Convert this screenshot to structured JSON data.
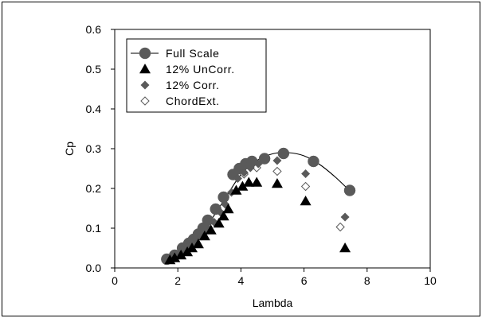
{
  "chart_data": {
    "type": "scatter",
    "xlabel": "Lambda",
    "ylabel": "Cp",
    "xlim": [
      0,
      10
    ],
    "ylim": [
      0,
      0.6
    ],
    "xticks": [
      0,
      2,
      4,
      6,
      8,
      10
    ],
    "yticks": [
      0.0,
      0.1,
      0.2,
      0.3,
      0.4,
      0.5,
      0.6
    ],
    "ytick_labels": [
      "0.0",
      "0.1",
      "0.2",
      "0.3",
      "0.4",
      "0.5",
      "0.6"
    ],
    "grid": false,
    "legend_placement": "top-left",
    "series": [
      {
        "name": "Full Scale",
        "marker": "circle",
        "line": true,
        "color": "#5a5a5a",
        "x": [
          1.65,
          1.9,
          2.15,
          2.35,
          2.5,
          2.65,
          2.8,
          2.95,
          3.2,
          3.45,
          3.75,
          3.95,
          4.15,
          4.35,
          4.75,
          5.35,
          6.3,
          7.45
        ],
        "y": [
          0.022,
          0.032,
          0.05,
          0.062,
          0.072,
          0.085,
          0.1,
          0.12,
          0.148,
          0.178,
          0.235,
          0.25,
          0.262,
          0.268,
          0.275,
          0.288,
          0.268,
          0.195
        ],
        "curve_x": [
          1.6,
          2.0,
          2.5,
          3.0,
          3.5,
          4.0,
          4.5,
          5.0,
          5.5,
          6.0,
          6.5,
          7.0,
          7.5
        ],
        "curve_y": [
          0.018,
          0.035,
          0.07,
          0.115,
          0.175,
          0.235,
          0.27,
          0.287,
          0.29,
          0.282,
          0.26,
          0.228,
          0.19
        ]
      },
      {
        "name": "12% UnCorr.",
        "marker": "triangle",
        "color": "#000000",
        "x": [
          1.75,
          1.9,
          2.1,
          2.3,
          2.45,
          2.65,
          2.85,
          3.05,
          3.3,
          3.45,
          3.6,
          3.85,
          4.05,
          4.25,
          4.5,
          5.15,
          6.05,
          7.3
        ],
        "y": [
          0.02,
          0.025,
          0.032,
          0.04,
          0.05,
          0.06,
          0.08,
          0.095,
          0.112,
          0.13,
          0.148,
          0.195,
          0.205,
          0.215,
          0.215,
          0.212,
          0.168,
          0.05
        ]
      },
      {
        "name": "12% Corr.",
        "marker": "diamond",
        "color": "#5a5a5a",
        "x": [
          1.75,
          1.95,
          2.15,
          2.35,
          2.55,
          2.75,
          2.95,
          3.15,
          3.35,
          3.5,
          3.7,
          3.9,
          4.1,
          4.3,
          4.55,
          5.15,
          6.05,
          7.3
        ],
        "y": [
          0.025,
          0.035,
          0.045,
          0.055,
          0.065,
          0.08,
          0.1,
          0.115,
          0.14,
          0.16,
          0.19,
          0.225,
          0.24,
          0.252,
          0.262,
          0.27,
          0.237,
          0.128
        ]
      },
      {
        "name": "ChordExt.",
        "marker": "diamond-open",
        "color": "#5a5a5a",
        "x": [
          4.1,
          4.5,
          5.15,
          6.05,
          7.15
        ],
        "y": [
          0.236,
          0.252,
          0.243,
          0.205,
          0.103
        ]
      }
    ]
  }
}
